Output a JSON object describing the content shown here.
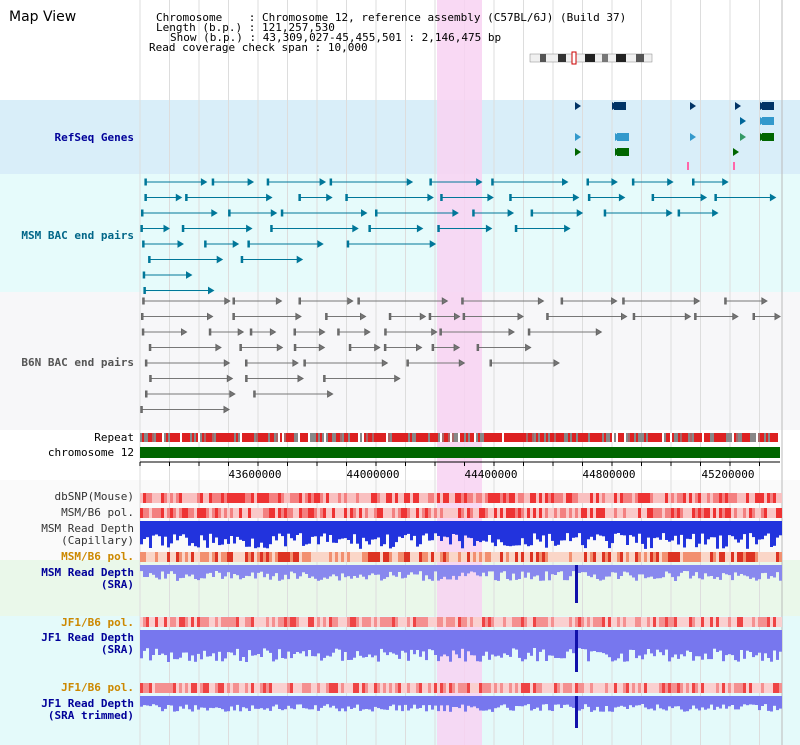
{
  "title": "Map View",
  "info": {
    "chromosome_label": "Chromosome",
    "chromosome_value": "Chromosome 12, reference assembly (C57BL/6J) (Build 37)",
    "length_label": "Length (b.p.)",
    "length_value": "121,257,530",
    "show_label": "Show (b.p.)",
    "show_value": "43,309,027-45,455,501 : 2,146,475 bp",
    "span_label": "Read coverage check span",
    "span_value": "10,000"
  },
  "tracks": {
    "refseq": "RefSeq Genes",
    "msm_bac": "MSM BAC end pairs",
    "b6n_bac": "B6N BAC end pairs",
    "repeat": "Repeat",
    "chromosome": "chromosome 12",
    "dbsnp": "dbSNP(Mouse)",
    "msm_b6_pol_1": "MSM/B6 pol.",
    "msm_depth_cap_1": "MSM Read Depth",
    "msm_depth_cap_2": "(Capillary)",
    "msm_b6_pol_2": "MSM/B6 pol.",
    "msm_depth_sra_1": "MSM Read Depth",
    "msm_depth_sra_2": "(SRA)",
    "jf1_b6_pol_1": "JF1/B6 pol.",
    "jf1_depth_1": "JF1 Read Depth",
    "jf1_depth_2": "(SRA)",
    "jf1_b6_pol_2": "JF1/B6 pol.",
    "jf1_trim_1": "JF1 Read Depth",
    "jf1_trim_2": "(SRA trimmed)"
  },
  "axis": {
    "ticks": [
      "43600000",
      "44000000",
      "44400000",
      "44800000",
      "45200000"
    ]
  },
  "colors": {
    "refseq_bg": "#d9eef9",
    "msm_bg": "#e8fbfb",
    "b6n_bg": "#f7f7f9",
    "highlight": "#f8d8f4",
    "chrom": "#006600",
    "msm_label": "#006688",
    "b6n_label": "#555555",
    "refseq_label": "#000099",
    "pol_label": "#cc8800",
    "depth_label": "#000099"
  }
}
